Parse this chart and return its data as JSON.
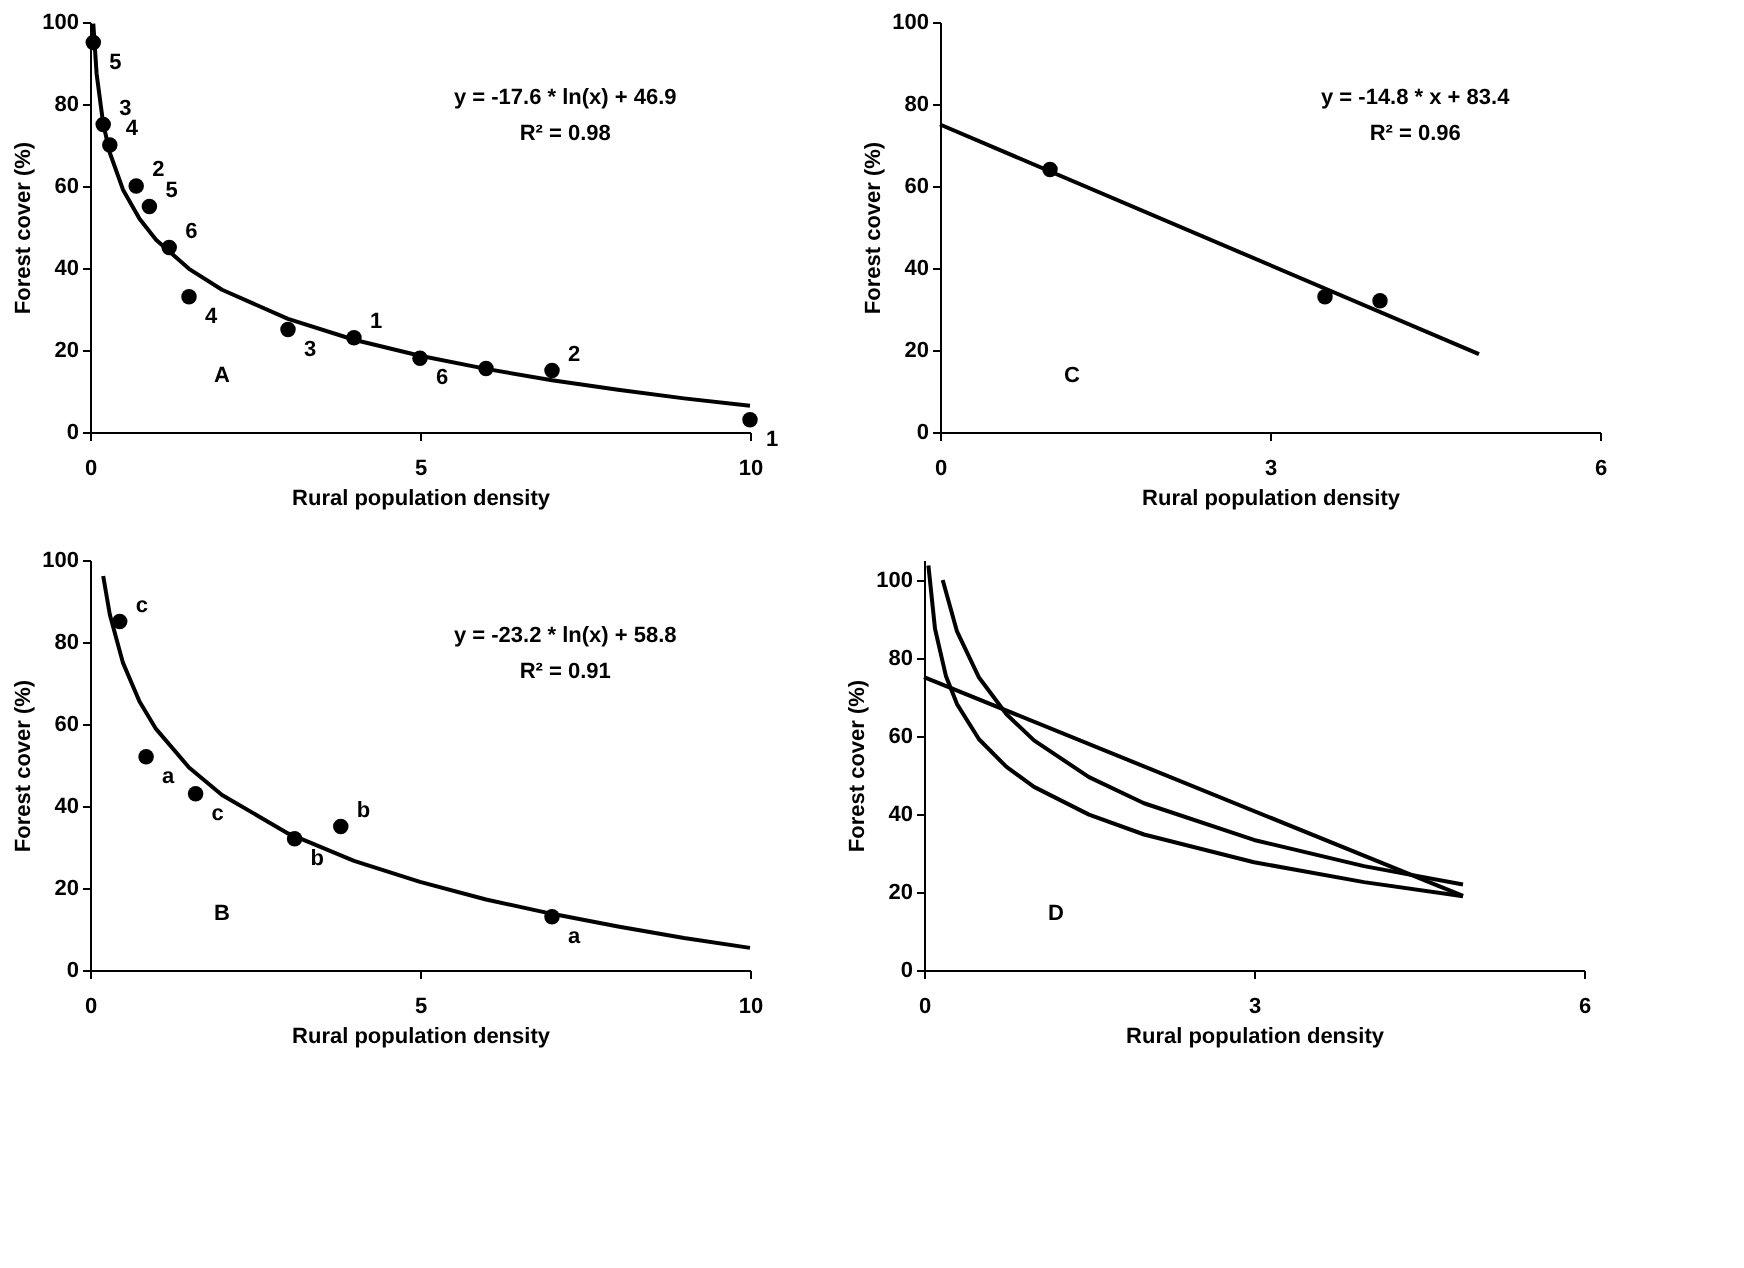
{
  "chart_data": [
    {
      "type": "scatter",
      "xlabel": "Rural population density",
      "ylabel": "Forest cover (%)",
      "xlim": [
        0,
        10
      ],
      "xticks": [
        0,
        5,
        10
      ],
      "ylim": [
        0,
        100
      ],
      "yticks": [
        0,
        20,
        40,
        60,
        80,
        100
      ],
      "annotations": [
        "y = -17.6 * ln(x) + 46.9",
        "R² = 0.98",
        "A",
        {
          "text": "5",
          "x": 0.05,
          "y": 95
        },
        {
          "text": "3",
          "x": 0.2,
          "y": 75
        },
        {
          "text": "4",
          "x": 0.3,
          "y": 70
        },
        {
          "text": "2",
          "x": 0.7,
          "y": 60
        },
        {
          "text": "5",
          "x": 0.9,
          "y": 55
        },
        {
          "text": "6",
          "x": 1.2,
          "y": 45
        },
        {
          "text": "4",
          "x": 1.5,
          "y": 33
        },
        {
          "text": "3",
          "x": 3,
          "y": 25
        },
        {
          "text": "1",
          "x": 4,
          "y": 23
        },
        {
          "text": "6",
          "x": 5,
          "y": 18
        },
        {
          "text": "2",
          "x": 7,
          "y": 15
        },
        {
          "text": "1",
          "x": 10,
          "y": 3
        }
      ],
      "series": [
        {
          "color": "#000000",
          "marker": "circle",
          "x": [
            0.05,
            0.2,
            0.3,
            0.7,
            0.9,
            1.2,
            1.5,
            3,
            4,
            5,
            6,
            7,
            10
          ],
          "values": [
            95,
            75,
            70,
            60,
            55,
            45,
            33,
            25,
            23,
            18,
            15.5,
            15,
            3
          ]
        },
        {
          "type": "line",
          "color": "#000000",
          "x": [
            0.05,
            0.1,
            0.2,
            0.3,
            0.5,
            0.75,
            1,
            1.5,
            2,
            3,
            4,
            5,
            6,
            7,
            8,
            9,
            10
          ],
          "values": [
            99.6,
            87.4,
            75.2,
            68.1,
            59.1,
            52.0,
            46.9,
            39.8,
            34.7,
            27.6,
            22.5,
            18.6,
            15.4,
            12.6,
            10.3,
            8.2,
            6.4
          ]
        }
      ]
    },
    {
      "type": "scatter",
      "xlabel": "Rural population density",
      "ylabel": "Forest cover (%)",
      "xlim": [
        0,
        6
      ],
      "xticks": [
        0,
        3,
        6
      ],
      "ylim": [
        0,
        100
      ],
      "yticks": [
        0,
        20,
        40,
        60,
        80,
        100
      ],
      "annotations": [
        "y = -14.8 * x + 83.4",
        "R² = 0.96",
        "C"
      ],
      "series": [
        {
          "color": "#000000",
          "marker": "circle",
          "x": [
            1,
            3.5,
            4
          ],
          "values": [
            64,
            33,
            32
          ]
        },
        {
          "type": "line",
          "color": "#000000",
          "x": [
            0,
            4.9
          ],
          "values": [
            75,
            19
          ]
        }
      ]
    },
    {
      "type": "scatter",
      "xlabel": "Rural population density",
      "ylabel": "Forest cover (%)",
      "xlim": [
        0,
        10
      ],
      "xticks": [
        0,
        5,
        10
      ],
      "ylim": [
        0,
        100
      ],
      "yticks": [
        0,
        20,
        40,
        60,
        80,
        100
      ],
      "annotations": [
        "y = -23.2 * ln(x) + 58.8",
        "R² = 0.91",
        "B",
        {
          "text": "c",
          "x": 0.45,
          "y": 85
        },
        {
          "text": "a",
          "x": 0.85,
          "y": 52
        },
        {
          "text": "c",
          "x": 1.6,
          "y": 43
        },
        {
          "text": "b",
          "x": 3.1,
          "y": 32
        },
        {
          "text": "b",
          "x": 3.8,
          "y": 35
        },
        {
          "text": "a",
          "x": 7,
          "y": 13
        }
      ],
      "series": [
        {
          "color": "#000000",
          "marker": "circle",
          "x": [
            0.45,
            0.85,
            1.6,
            3.1,
            3.8,
            7
          ],
          "values": [
            85,
            52,
            43,
            32,
            35,
            13
          ]
        },
        {
          "type": "line",
          "color": "#000000",
          "x": [
            0.2,
            0.3,
            0.5,
            0.75,
            1,
            1.5,
            2,
            3,
            4,
            5,
            6,
            7,
            8,
            9,
            10
          ],
          "values": [
            96.1,
            86.7,
            74.9,
            65.5,
            58.8,
            49.4,
            42.7,
            33.3,
            26.6,
            21.5,
            17.2,
            13.7,
            10.6,
            7.8,
            5.4
          ]
        }
      ]
    },
    {
      "type": "line",
      "xlabel": "Rural population density",
      "ylabel": "Forest cover (%)",
      "xlim": [
        0,
        6
      ],
      "xticks": [
        0,
        3,
        6
      ],
      "ylim": [
        0,
        105
      ],
      "yticks": [
        0,
        20,
        40,
        60,
        80,
        100
      ],
      "annotations": [
        "D"
      ],
      "series": [
        {
          "color": "#000000",
          "x": [
            0.04,
            0.1,
            0.2,
            0.3,
            0.5,
            0.75,
            1,
            1.5,
            2,
            3,
            4,
            4.9
          ],
          "values": [
            103.6,
            87.4,
            75.2,
            68.1,
            59.1,
            52.0,
            46.9,
            39.8,
            34.7,
            27.6,
            22.5,
            18.9
          ]
        },
        {
          "color": "#000000",
          "x": [
            0.17,
            0.3,
            0.5,
            0.75,
            1,
            1.5,
            2,
            3,
            4,
            4.9
          ],
          "values": [
            99.9,
            86.7,
            74.9,
            65.5,
            58.8,
            49.4,
            42.7,
            33.3,
            26.6,
            21.9
          ]
        },
        {
          "color": "#000000",
          "x": [
            0,
            4.9
          ],
          "values": [
            75,
            19
          ]
        }
      ]
    }
  ]
}
